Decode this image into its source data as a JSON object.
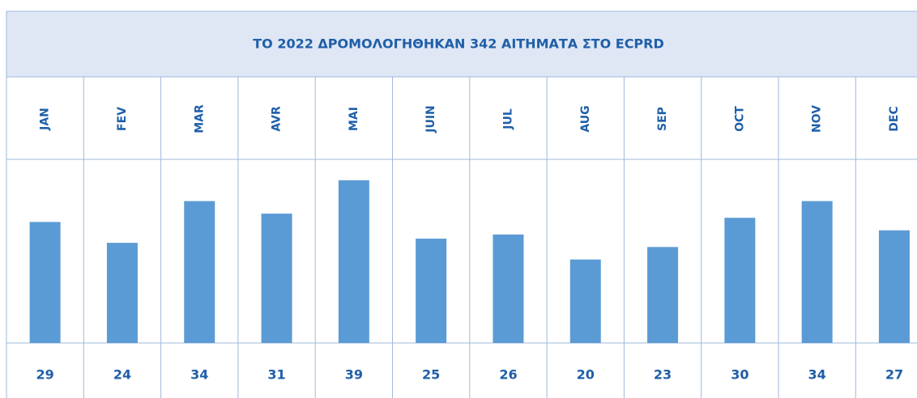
{
  "chart_data": {
    "type": "bar",
    "title": "ΤΟ 2022 ΔΡΟΜΟΛΟΓΗΘΗΚΑΝ 342 ΑΙΤΗΜΑΤΑ ΣΤΟ ECPRD",
    "categories": [
      "JAN",
      "FEV",
      "MAR",
      "AVR",
      "MAI",
      "JUIN",
      "JUL",
      "AUG",
      "SEP",
      "OCT",
      "NOV",
      "DEC"
    ],
    "values": [
      29,
      24,
      34,
      31,
      39,
      25,
      26,
      20,
      23,
      30,
      34,
      27
    ],
    "color": "#5b9bd5",
    "ylim": [
      0,
      44
    ]
  }
}
